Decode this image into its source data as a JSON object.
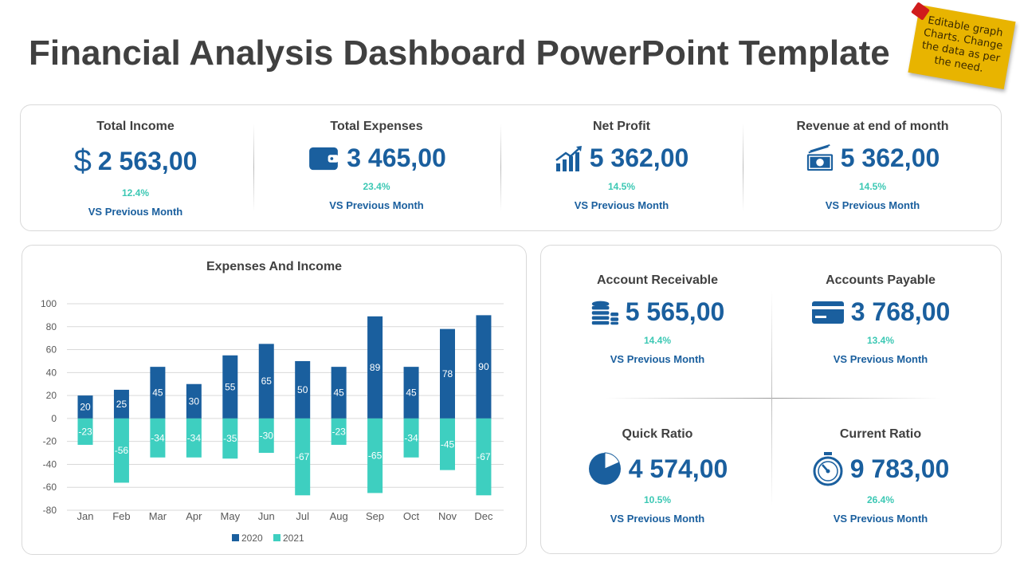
{
  "title": "Financial Analysis Dashboard PowerPoint Template",
  "sticky_note": "Editable graph Charts. Change the data as per the need.",
  "colors": {
    "primary": "#1a5f9e",
    "accent": "#3ecfc0",
    "note": "#e8b400"
  },
  "top_kpis": [
    {
      "label": "Total Income",
      "value": "2 563,00",
      "pct": "12.4%",
      "vs": "VS Previous Month",
      "icon": "dollar-icon"
    },
    {
      "label": "Total Expenses",
      "value": "3 465,00",
      "pct": "23.4%",
      "vs": "VS Previous Month",
      "icon": "wallet-icon"
    },
    {
      "label": "Net Profit",
      "value": "5 362,00",
      "pct": "14.5%",
      "vs": "VS Previous Month",
      "icon": "growth-chart-icon"
    },
    {
      "label": "Revenue at end of month",
      "value": "5 362,00",
      "pct": "14.5%",
      "vs": "VS Previous Month",
      "icon": "banknote-icon"
    }
  ],
  "right_kpis": [
    {
      "label": "Account Receivable",
      "value": "5 565,00",
      "pct": "14.4%",
      "vs": "VS Previous Month",
      "icon": "coins-icon"
    },
    {
      "label": "Accounts Payable",
      "value": "3 768,00",
      "pct": "13.4%",
      "vs": "VS Previous Month",
      "icon": "credit-card-icon"
    },
    {
      "label": "Quick Ratio",
      "value": "4 574,00",
      "pct": "10.5%",
      "vs": "VS Previous Month",
      "icon": "pie-chart-icon"
    },
    {
      "label": "Current Ratio",
      "value": "9 783,00",
      "pct": "26.4%",
      "vs": "VS Previous Month",
      "icon": "stopwatch-icon"
    }
  ],
  "chart_data": {
    "type": "bar",
    "title": "Expenses And Income",
    "categories": [
      "Jan",
      "Feb",
      "Mar",
      "Apr",
      "May",
      "Jun",
      "Jul",
      "Aug",
      "Sep",
      "Oct",
      "Nov",
      "Dec"
    ],
    "series": [
      {
        "name": "2020",
        "color": "#1a5f9e",
        "values": [
          20,
          25,
          45,
          30,
          55,
          65,
          50,
          45,
          89,
          45,
          78,
          90
        ]
      },
      {
        "name": "2021",
        "color": "#3ecfc0",
        "values": [
          -23,
          -56,
          -34,
          -34,
          -35,
          -30,
          -67,
          -23,
          -65,
          -34,
          -45,
          -67
        ]
      }
    ],
    "ylim": [
      -80,
      100
    ],
    "yticks": [
      100,
      80,
      60,
      40,
      20,
      0,
      -20,
      -40,
      -60,
      -80
    ],
    "grid": true,
    "legend": "bottom"
  }
}
